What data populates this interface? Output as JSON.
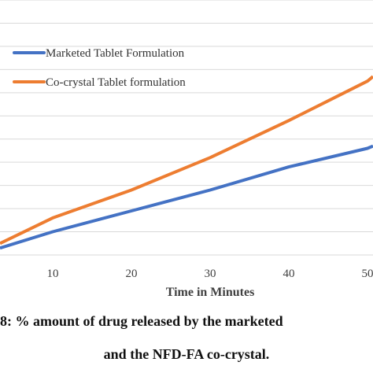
{
  "chart_data": {
    "type": "line",
    "xlabel": "Time in Minutes",
    "ylabel": "",
    "x_ticks": [
      10,
      20,
      30,
      40,
      50
    ],
    "xlim": [
      3.3,
      50.7
    ],
    "ylim": [
      0,
      110
    ],
    "y_gridlines": [
      10,
      20,
      30,
      40,
      50,
      60,
      70,
      80,
      90,
      100,
      110
    ],
    "grid": "horizontal",
    "legend_position": "top-left",
    "series": [
      {
        "name": "Marketed Tablet Formulation",
        "color": "#4472C4",
        "x": [
          3.3,
          10,
          20,
          30,
          40,
          50,
          50.7
        ],
        "y": [
          3,
          10,
          19,
          28,
          38,
          46,
          47
        ]
      },
      {
        "name": "Co-crystal Tablet formulation",
        "color": "#ED7D31",
        "x": [
          3.3,
          10,
          20,
          30,
          40,
          50,
          50.7
        ],
        "y": [
          5,
          16,
          28,
          42,
          58,
          75,
          77
        ]
      }
    ]
  },
  "caption": {
    "line1": "8: % amount of drug released by the marketed",
    "line2": "and the NFD-FA co-crystal."
  }
}
